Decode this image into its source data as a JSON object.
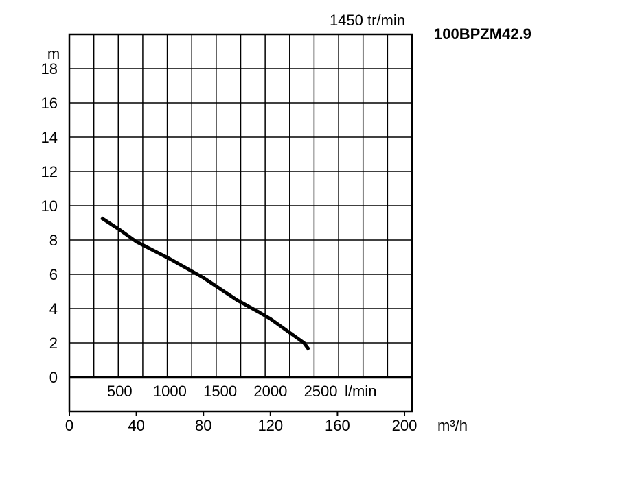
{
  "chart_data": {
    "type": "line",
    "title": "100BPZM42.9",
    "subtitle": "1450 tr/min",
    "y_label": "m",
    "x_label": "m³/h",
    "x2_label": "l/min",
    "x": [
      19,
      30,
      40,
      60,
      80,
      100,
      113,
      120,
      140,
      143
    ],
    "values": [
      9.3,
      8.6,
      7.9,
      6.9,
      5.8,
      4.5,
      3.8,
      3.4,
      2.0,
      1.6
    ],
    "color": "#000000",
    "xlim": [
      0,
      204.5
    ],
    "xticks": [
      0,
      40,
      80,
      120,
      160,
      200
    ],
    "x2lim": [
      0,
      3408
    ],
    "x2ticks": [
      500,
      1000,
      1500,
      2000,
      2500
    ],
    "ylim": [
      0,
      20
    ],
    "yticks": [
      0,
      2,
      4,
      6,
      8,
      10,
      12,
      14,
      16,
      18
    ],
    "grid": true
  }
}
